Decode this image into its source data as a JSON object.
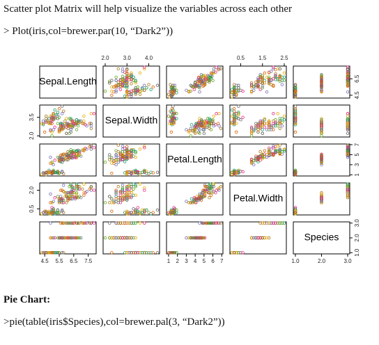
{
  "document": {
    "intro": "Scatter plot Matrix will help visualize the variables across each other",
    "code1": "> Plot(iris,col=brewer.par(10, “Dark2”))",
    "heading": "Pie Chart:",
    "code2": ">pie(table(iris$Species),col=brewer.pal(3, “Dark2”))"
  },
  "chart_data": {
    "type": "scatter_matrix",
    "variables": [
      "Sepal.Length",
      "Sepal.Width",
      "Petal.Length",
      "Petal.Width",
      "Species"
    ],
    "lims": [
      [
        4.156,
        8.044
      ],
      [
        1.904,
        4.496
      ],
      [
        0.764,
        7.136
      ],
      [
        0.004,
        2.596
      ],
      [
        0.92,
        3.08
      ]
    ],
    "palette": [
      "#1B9E77",
      "#D95F02",
      "#7570B3",
      "#E7298A",
      "#66A61E",
      "#E6AB02",
      "#A6761D",
      "#666666"
    ],
    "top_axes": [
      {
        "column": 1,
        "ticks": [
          {
            "value": 2,
            "label": "2.0"
          },
          {
            "value": 3,
            "label": "3.0"
          },
          {
            "value": 4,
            "label": "4.0"
          }
        ]
      },
      {
        "column": 3,
        "ticks": [
          0.5,
          1.5,
          2.5
        ]
      }
    ],
    "bottom_axes": [
      {
        "column": 0,
        "ticks": [
          4.5,
          5.5,
          6.5,
          7.5
        ]
      },
      {
        "column": 2,
        "ticks": [
          1,
          2,
          3,
          4,
          5,
          6,
          7
        ]
      },
      {
        "column": 4,
        "ticks": [
          {
            "value": 1,
            "label": "1.0"
          },
          {
            "value": 2,
            "label": "2.0"
          },
          {
            "value": 3,
            "label": "3.0"
          }
        ]
      }
    ],
    "left_axes": [
      {
        "row": 1,
        "ticks": [
          {
            "value": 2,
            "label": "2.0"
          },
          3.5
        ]
      },
      {
        "row": 3,
        "ticks": [
          0.5,
          {
            "value": 2,
            "label": "2.0"
          }
        ]
      }
    ],
    "right_axes": [
      {
        "row": 0,
        "ticks": [
          4.5,
          6.5
        ]
      },
      {
        "row": 2,
        "ticks": [
          1,
          3,
          5,
          7
        ]
      },
      {
        "row": 4,
        "ticks": [
          {
            "value": 1,
            "label": "1.0"
          },
          {
            "value": 2,
            "label": "2.0"
          },
          {
            "value": 3,
            "label": "3.0"
          }
        ]
      }
    ],
    "rows": [
      [
        5.1,
        3.5,
        1.4,
        0.2,
        1
      ],
      [
        4.9,
        3.0,
        1.4,
        0.2,
        1
      ],
      [
        4.7,
        3.2,
        1.3,
        0.2,
        1
      ],
      [
        4.6,
        3.1,
        1.5,
        0.2,
        1
      ],
      [
        5.0,
        3.6,
        1.4,
        0.2,
        1
      ],
      [
        5.4,
        3.9,
        1.7,
        0.4,
        1
      ],
      [
        4.6,
        3.4,
        1.4,
        0.3,
        1
      ],
      [
        5.0,
        3.4,
        1.5,
        0.2,
        1
      ],
      [
        4.4,
        2.9,
        1.4,
        0.2,
        1
      ],
      [
        4.9,
        3.1,
        1.5,
        0.1,
        1
      ],
      [
        5.4,
        3.7,
        1.5,
        0.2,
        1
      ],
      [
        4.8,
        3.4,
        1.6,
        0.2,
        1
      ],
      [
        4.8,
        3.0,
        1.4,
        0.1,
        1
      ],
      [
        4.3,
        3.0,
        1.1,
        0.1,
        1
      ],
      [
        5.8,
        4.0,
        1.2,
        0.2,
        1
      ],
      [
        5.7,
        4.4,
        1.5,
        0.4,
        1
      ],
      [
        5.4,
        3.9,
        1.3,
        0.4,
        1
      ],
      [
        5.1,
        3.5,
        1.4,
        0.3,
        1
      ],
      [
        5.7,
        3.8,
        1.7,
        0.3,
        1
      ],
      [
        5.1,
        3.8,
        1.5,
        0.3,
        1
      ],
      [
        5.4,
        3.4,
        1.7,
        0.2,
        1
      ],
      [
        5.1,
        3.7,
        1.5,
        0.4,
        1
      ],
      [
        4.6,
        3.6,
        1.0,
        0.2,
        1
      ],
      [
        5.1,
        3.3,
        1.7,
        0.5,
        1
      ],
      [
        4.8,
        3.4,
        1.9,
        0.2,
        1
      ],
      [
        5.0,
        3.0,
        1.6,
        0.2,
        1
      ],
      [
        5.0,
        3.4,
        1.6,
        0.4,
        1
      ],
      [
        5.2,
        3.5,
        1.5,
        0.2,
        1
      ],
      [
        5.2,
        3.4,
        1.4,
        0.2,
        1
      ],
      [
        4.7,
        3.2,
        1.6,
        0.2,
        1
      ],
      [
        4.8,
        3.1,
        1.6,
        0.2,
        1
      ],
      [
        5.4,
        3.4,
        1.5,
        0.4,
        1
      ],
      [
        5.2,
        4.1,
        1.5,
        0.1,
        1
      ],
      [
        5.5,
        4.2,
        1.4,
        0.2,
        1
      ],
      [
        4.9,
        3.1,
        1.5,
        0.2,
        1
      ],
      [
        5.0,
        3.2,
        1.2,
        0.2,
        1
      ],
      [
        5.5,
        3.5,
        1.3,
        0.2,
        1
      ],
      [
        4.9,
        3.6,
        1.4,
        0.1,
        1
      ],
      [
        4.4,
        3.0,
        1.3,
        0.2,
        1
      ],
      [
        5.1,
        3.4,
        1.5,
        0.2,
        1
      ],
      [
        5.0,
        3.5,
        1.3,
        0.3,
        1
      ],
      [
        4.5,
        2.3,
        1.3,
        0.3,
        1
      ],
      [
        4.4,
        3.2,
        1.3,
        0.2,
        1
      ],
      [
        5.0,
        3.5,
        1.6,
        0.6,
        1
      ],
      [
        5.1,
        3.8,
        1.9,
        0.4,
        1
      ],
      [
        4.8,
        3.0,
        1.4,
        0.3,
        1
      ],
      [
        5.1,
        3.8,
        1.6,
        0.2,
        1
      ],
      [
        4.6,
        3.2,
        1.4,
        0.2,
        1
      ],
      [
        5.3,
        3.7,
        1.5,
        0.2,
        1
      ],
      [
        5.0,
        3.3,
        1.4,
        0.2,
        1
      ],
      [
        7.0,
        3.2,
        4.7,
        1.4,
        2
      ],
      [
        6.4,
        3.2,
        4.5,
        1.5,
        2
      ],
      [
        6.9,
        3.1,
        4.9,
        1.5,
        2
      ],
      [
        5.5,
        2.3,
        4.0,
        1.3,
        2
      ],
      [
        6.5,
        2.8,
        4.6,
        1.5,
        2
      ],
      [
        5.7,
        2.8,
        4.5,
        1.3,
        2
      ],
      [
        6.3,
        3.3,
        4.7,
        1.6,
        2
      ],
      [
        4.9,
        2.4,
        3.3,
        1.0,
        2
      ],
      [
        6.6,
        2.9,
        4.6,
        1.3,
        2
      ],
      [
        5.2,
        2.7,
        3.9,
        1.4,
        2
      ],
      [
        5.0,
        2.0,
        3.5,
        1.0,
        2
      ],
      [
        5.9,
        3.0,
        4.2,
        1.5,
        2
      ],
      [
        6.0,
        2.2,
        4.0,
        1.0,
        2
      ],
      [
        6.1,
        2.9,
        4.7,
        1.4,
        2
      ],
      [
        5.6,
        2.9,
        3.6,
        1.3,
        2
      ],
      [
        6.7,
        3.1,
        4.4,
        1.4,
        2
      ],
      [
        5.6,
        3.0,
        4.5,
        1.5,
        2
      ],
      [
        5.8,
        2.7,
        4.1,
        1.0,
        2
      ],
      [
        6.2,
        2.2,
        4.5,
        1.5,
        2
      ],
      [
        5.6,
        2.5,
        3.9,
        1.1,
        2
      ],
      [
        5.9,
        3.2,
        4.8,
        1.8,
        2
      ],
      [
        6.1,
        2.8,
        4.0,
        1.3,
        2
      ],
      [
        6.3,
        2.5,
        4.9,
        1.5,
        2
      ],
      [
        6.1,
        2.8,
        4.7,
        1.2,
        2
      ],
      [
        6.4,
        2.9,
        4.3,
        1.3,
        2
      ],
      [
        6.6,
        3.0,
        4.4,
        1.4,
        2
      ],
      [
        6.8,
        2.8,
        4.8,
        1.4,
        2
      ],
      [
        6.7,
        3.0,
        5.0,
        1.7,
        2
      ],
      [
        6.0,
        2.9,
        4.5,
        1.5,
        2
      ],
      [
        5.7,
        2.6,
        3.5,
        1.0,
        2
      ],
      [
        5.5,
        2.4,
        3.8,
        1.1,
        2
      ],
      [
        5.5,
        2.4,
        3.7,
        1.0,
        2
      ],
      [
        5.8,
        2.7,
        3.9,
        1.2,
        2
      ],
      [
        6.0,
        2.7,
        5.1,
        1.6,
        2
      ],
      [
        5.4,
        3.0,
        4.5,
        1.5,
        2
      ],
      [
        6.0,
        3.4,
        4.5,
        1.6,
        2
      ],
      [
        6.7,
        3.1,
        4.7,
        1.5,
        2
      ],
      [
        6.3,
        2.3,
        4.4,
        1.3,
        2
      ],
      [
        5.6,
        3.0,
        4.1,
        1.3,
        2
      ],
      [
        5.5,
        2.5,
        4.0,
        1.3,
        2
      ],
      [
        5.5,
        2.6,
        4.4,
        1.2,
        2
      ],
      [
        6.1,
        3.0,
        4.6,
        1.4,
        2
      ],
      [
        5.8,
        2.6,
        4.0,
        1.2,
        2
      ],
      [
        5.0,
        2.3,
        3.3,
        1.0,
        2
      ],
      [
        5.6,
        2.7,
        4.2,
        1.3,
        2
      ],
      [
        5.7,
        3.0,
        4.2,
        1.2,
        2
      ],
      [
        5.7,
        2.9,
        4.2,
        1.3,
        2
      ],
      [
        6.2,
        2.9,
        4.3,
        1.3,
        2
      ],
      [
        5.1,
        2.5,
        3.0,
        1.1,
        2
      ],
      [
        5.7,
        2.8,
        4.1,
        1.3,
        2
      ],
      [
        6.3,
        3.3,
        6.0,
        2.5,
        3
      ],
      [
        5.8,
        2.7,
        5.1,
        1.9,
        3
      ],
      [
        7.1,
        3.0,
        5.9,
        2.1,
        3
      ],
      [
        6.3,
        2.9,
        5.6,
        1.8,
        3
      ],
      [
        6.5,
        3.0,
        5.8,
        2.2,
        3
      ],
      [
        7.6,
        3.0,
        6.6,
        2.1,
        3
      ],
      [
        4.9,
        2.5,
        4.5,
        1.7,
        3
      ],
      [
        7.3,
        2.9,
        6.3,
        1.8,
        3
      ],
      [
        6.7,
        2.5,
        5.8,
        1.8,
        3
      ],
      [
        7.2,
        3.6,
        6.1,
        2.5,
        3
      ],
      [
        6.5,
        3.2,
        5.1,
        2.0,
        3
      ],
      [
        6.4,
        2.7,
        5.3,
        1.9,
        3
      ],
      [
        6.8,
        3.0,
        5.5,
        2.1,
        3
      ],
      [
        5.7,
        2.5,
        5.0,
        2.0,
        3
      ],
      [
        5.8,
        2.8,
        5.1,
        2.4,
        3
      ],
      [
        6.4,
        3.2,
        5.3,
        2.3,
        3
      ],
      [
        6.5,
        3.0,
        5.5,
        1.8,
        3
      ],
      [
        7.7,
        3.8,
        6.7,
        2.2,
        3
      ],
      [
        7.7,
        2.6,
        6.9,
        2.3,
        3
      ],
      [
        6.0,
        2.2,
        5.0,
        1.5,
        3
      ],
      [
        6.9,
        3.2,
        5.7,
        2.3,
        3
      ],
      [
        5.6,
        2.8,
        4.9,
        2.0,
        3
      ],
      [
        7.7,
        2.8,
        6.7,
        2.0,
        3
      ],
      [
        6.3,
        2.7,
        4.9,
        1.8,
        3
      ],
      [
        6.7,
        3.3,
        5.7,
        2.1,
        3
      ],
      [
        7.2,
        3.2,
        6.0,
        1.8,
        3
      ],
      [
        6.2,
        2.8,
        4.8,
        1.8,
        3
      ],
      [
        6.1,
        3.0,
        4.9,
        1.8,
        3
      ],
      [
        6.4,
        2.8,
        5.6,
        2.1,
        3
      ],
      [
        7.2,
        3.0,
        5.8,
        1.6,
        3
      ],
      [
        7.4,
        2.8,
        6.1,
        1.9,
        3
      ],
      [
        7.9,
        3.8,
        6.4,
        2.0,
        3
      ],
      [
        6.4,
        2.8,
        5.6,
        2.2,
        3
      ],
      [
        6.3,
        2.8,
        5.1,
        1.5,
        3
      ],
      [
        6.1,
        2.6,
        5.6,
        1.4,
        3
      ],
      [
        7.7,
        3.0,
        6.1,
        2.3,
        3
      ],
      [
        6.3,
        3.4,
        5.6,
        2.4,
        3
      ],
      [
        6.4,
        3.1,
        5.5,
        1.8,
        3
      ],
      [
        6.0,
        3.0,
        4.8,
        1.8,
        3
      ],
      [
        6.9,
        3.1,
        5.4,
        2.1,
        3
      ],
      [
        6.7,
        3.1,
        5.6,
        2.4,
        3
      ],
      [
        6.9,
        3.1,
        5.1,
        2.3,
        3
      ],
      [
        5.8,
        2.7,
        5.1,
        1.9,
        3
      ],
      [
        6.8,
        3.2,
        5.9,
        2.3,
        3
      ],
      [
        6.7,
        3.3,
        5.7,
        2.5,
        3
      ],
      [
        6.7,
        3.0,
        5.2,
        2.3,
        3
      ],
      [
        6.3,
        2.5,
        5.0,
        1.9,
        3
      ],
      [
        6.5,
        3.0,
        5.2,
        2.0,
        3
      ],
      [
        6.2,
        3.4,
        5.4,
        2.3,
        3
      ],
      [
        5.9,
        3.0,
        5.1,
        1.8,
        3
      ]
    ]
  }
}
